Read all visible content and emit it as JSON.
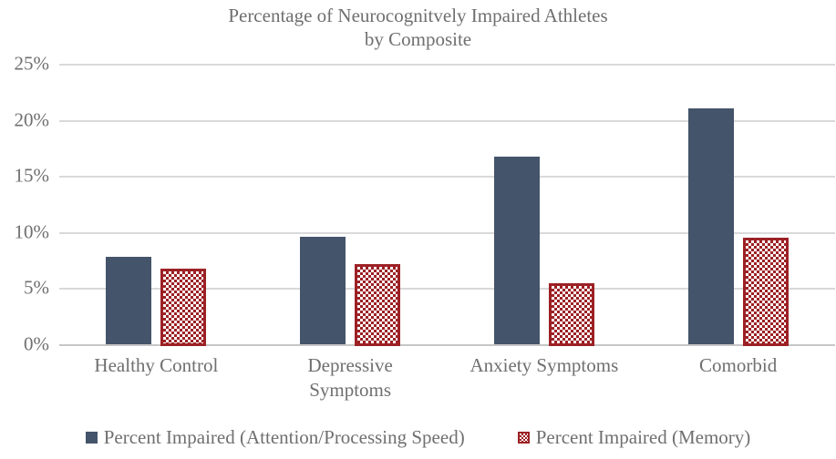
{
  "chart_data": {
    "type": "bar",
    "title": "Percentage of Neurocognitvely Impaired Athletes by Composite",
    "title_line1": "Percentage of Neurocognitvely Impaired Athletes",
    "title_line2": "by Composite",
    "categories": [
      "Healthy Control",
      "Depressive Symptoms",
      "Anxiety Symptoms",
      "Comorbid"
    ],
    "series": [
      {
        "name": "Percent Impaired (Attention/Processing Speed)",
        "values": [
          7.8,
          9.6,
          16.7,
          21.0
        ],
        "color": "#44546a",
        "fill": "solid"
      },
      {
        "name": "Percent Impaired (Memory)",
        "values": [
          6.9,
          7.3,
          5.6,
          9.7
        ],
        "color": "#9c2125",
        "fill": "checker"
      }
    ],
    "ylim": [
      0,
      25
    ],
    "ytick_step": 5,
    "ytick_labels": [
      "0%",
      "5%",
      "10%",
      "15%",
      "20%",
      "25%"
    ],
    "ylabel": "",
    "xlabel": "",
    "grid": true,
    "legend_position": "bottom",
    "colors": {
      "text": "#6f6f6f",
      "gridline": "#d9d9d9",
      "axis_line": "#c6c6c6",
      "background": "#ffffff"
    }
  }
}
